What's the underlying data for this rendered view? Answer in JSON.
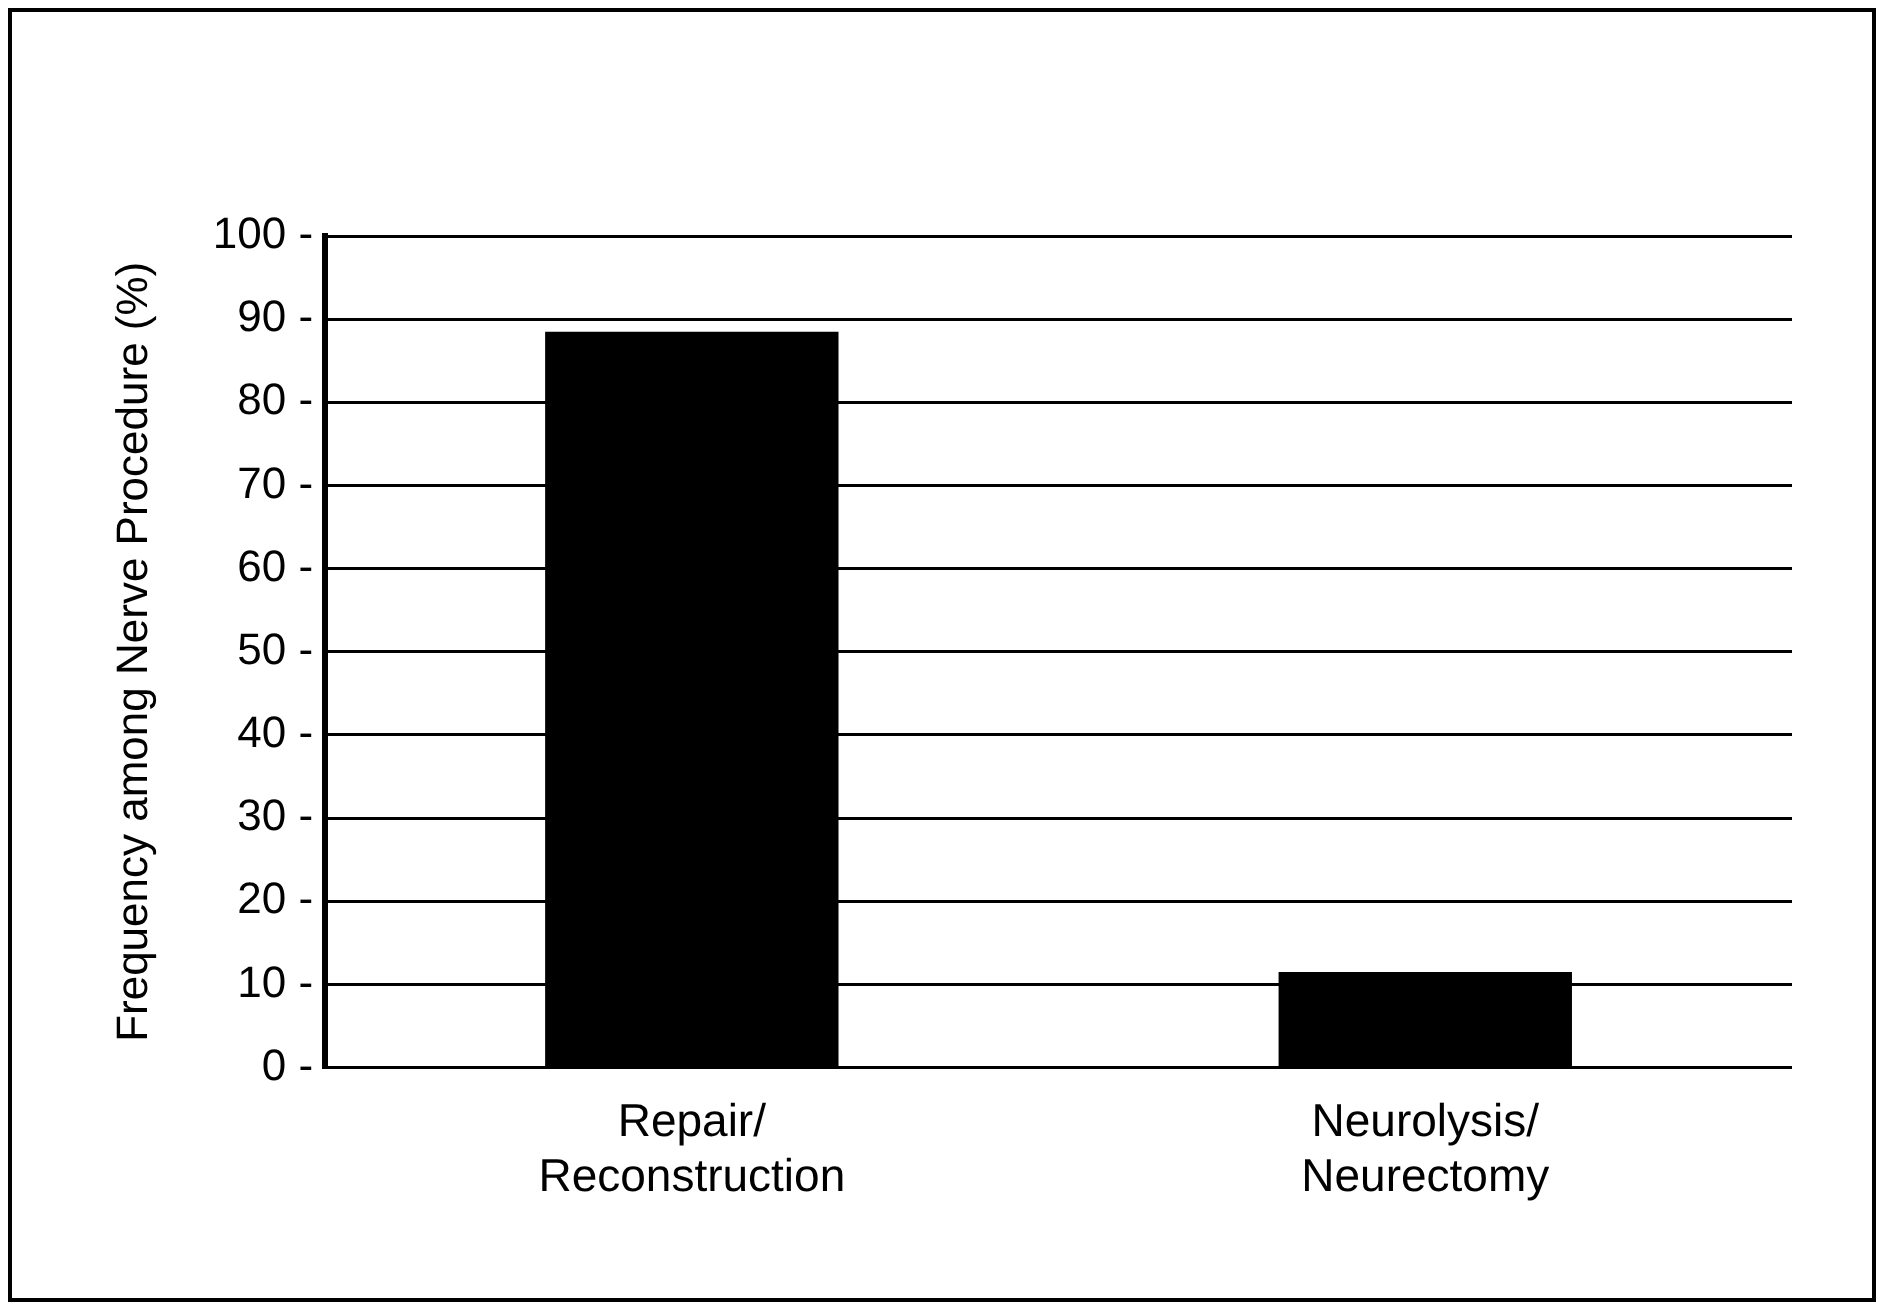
{
  "chart_data": {
    "type": "bar",
    "ylabel": "Frequency among Nerve Procedure (%)",
    "categories": [
      "Repair/\nReconstruction",
      "Neurolysis/\nNeurectomy"
    ],
    "values": [
      88.5,
      11.5
    ],
    "color": "#000000",
    "ylim": [
      0,
      100
    ],
    "yticks": [
      {
        "value": 0,
        "label": "0 -"
      },
      {
        "value": 10,
        "label": "10 -"
      },
      {
        "value": 20,
        "label": "20 -"
      },
      {
        "value": 30,
        "label": "30 -"
      },
      {
        "value": 40,
        "label": "40 -"
      },
      {
        "value": 50,
        "label": "50 -"
      },
      {
        "value": 60,
        "label": "60 -"
      },
      {
        "value": 70,
        "label": "70 -"
      },
      {
        "value": 80,
        "label": "80 -"
      },
      {
        "value": 90,
        "label": "90 -"
      },
      {
        "value": 100,
        "label": "100 -"
      }
    ],
    "grid": "y",
    "legend": false
  }
}
